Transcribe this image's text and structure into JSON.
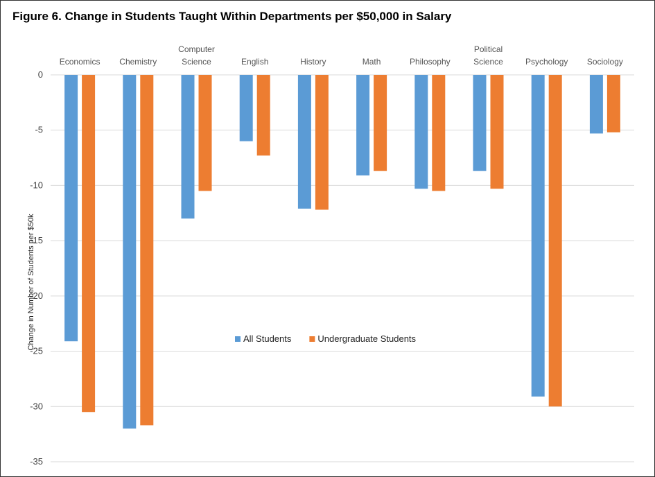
{
  "chart_data": {
    "type": "bar",
    "title": "Figure 6.  Change in Students Taught Within Departments per $50,000 in Salary",
    "xlabel": "",
    "ylabel": "Change in Number of Students per $50k",
    "ylim": [
      -35,
      0
    ],
    "yticks": [
      0,
      -5,
      -10,
      -15,
      -20,
      -25,
      -30,
      -35
    ],
    "grid": true,
    "legend_position": "center",
    "categories": [
      "Economics",
      "Chemistry",
      "Computer Science",
      "English",
      "History",
      "Math",
      "Philosophy",
      "Political Science",
      "Psychology",
      "Sociology"
    ],
    "category_lines": [
      [
        "Economics"
      ],
      [
        "Chemistry"
      ],
      [
        "Computer",
        "Science"
      ],
      [
        "English"
      ],
      [
        "History"
      ],
      [
        "Math"
      ],
      [
        "Philosophy"
      ],
      [
        "Political",
        "Science"
      ],
      [
        "Psychology"
      ],
      [
        "Sociology"
      ]
    ],
    "series": [
      {
        "name": "All Students",
        "color": "#5b9bd5",
        "values": [
          -24.1,
          -32.0,
          -13.0,
          -6.0,
          -12.1,
          -9.1,
          -10.3,
          -8.7,
          -29.1,
          -5.3
        ]
      },
      {
        "name": "Undergraduate Students",
        "color": "#ed7d31",
        "values": [
          -30.5,
          -31.7,
          -10.5,
          -7.3,
          -12.2,
          -8.7,
          -10.5,
          -10.3,
          -30.0,
          -5.2
        ]
      }
    ]
  }
}
